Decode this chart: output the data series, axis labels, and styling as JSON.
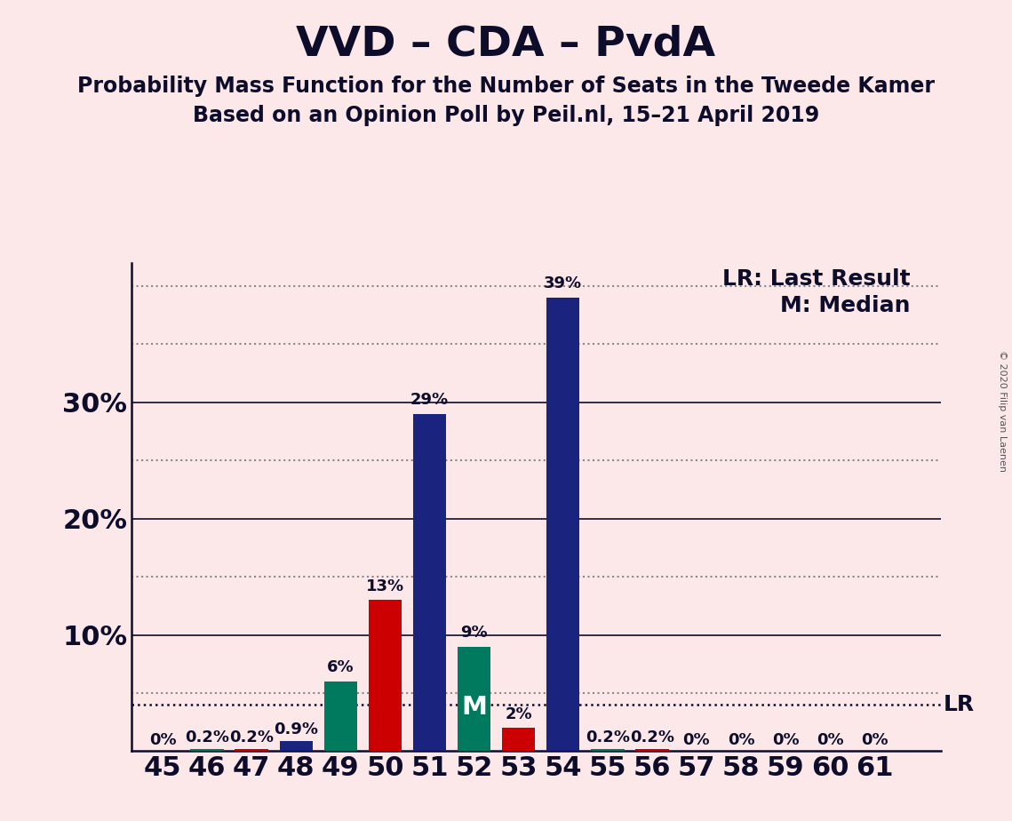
{
  "title": "VVD – CDA – PvdA",
  "subtitle1": "Probability Mass Function for the Number of Seats in the Tweede Kamer",
  "subtitle2": "Based on an Opinion Poll by Peil.nl, 15–21 April 2019",
  "copyright": "© 2020 Filip van Laenen",
  "legend_lr": "LR: Last Result",
  "legend_m": "M: Median",
  "background_color": "#fce8e8",
  "seats": [
    45,
    46,
    47,
    48,
    49,
    50,
    51,
    52,
    53,
    54,
    55,
    56,
    57,
    58,
    59,
    60,
    61
  ],
  "probabilities": [
    0.0,
    0.2,
    0.2,
    0.9,
    6.0,
    13.0,
    29.0,
    9.0,
    2.0,
    39.0,
    0.2,
    0.2,
    0.0,
    0.0,
    0.0,
    0.0,
    0.0
  ],
  "bar_colors": [
    "#1a237e",
    "#007a5e",
    "#cc0000",
    "#1a237e",
    "#007a5e",
    "#cc0000",
    "#1a237e",
    "#007a5e",
    "#cc0000",
    "#1a237e",
    "#007a5e",
    "#cc0000",
    "#1a237e",
    "#1a237e",
    "#1a237e",
    "#1a237e",
    "#1a237e"
  ],
  "median_seat": 52,
  "lr_value": 4.0,
  "ylim_max": 42,
  "solid_grid": [
    10,
    20,
    30
  ],
  "dotted_grid": [
    5,
    15,
    25,
    35,
    40
  ],
  "ytick_labels_pos": [
    10,
    20,
    30
  ],
  "title_fontsize": 34,
  "subtitle_fontsize": 17,
  "label_fontsize": 13,
  "tick_fontsize": 22,
  "legend_fontsize": 18
}
